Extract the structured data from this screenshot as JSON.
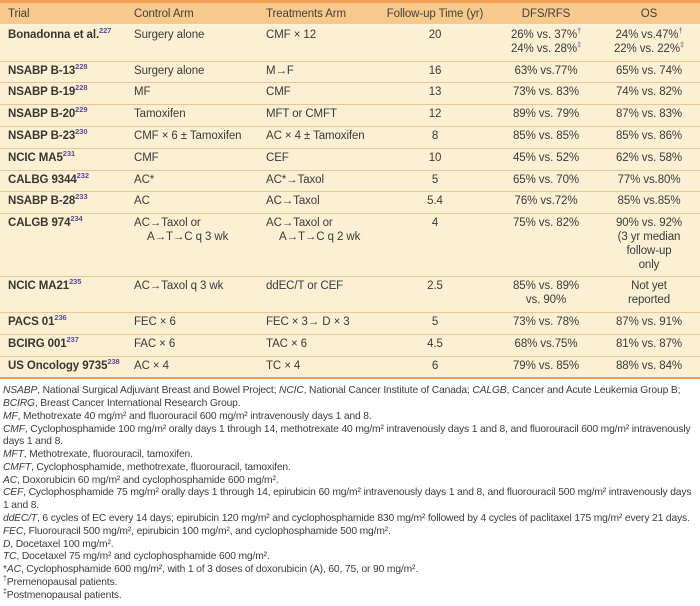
{
  "table": {
    "headers": [
      "Trial",
      "Control Arm",
      "Treatments Arm",
      "Follow-up Time (yr)",
      "DFS/RFS",
      "OS"
    ],
    "rows": [
      {
        "trial": {
          "name": "Bonadonna et al.",
          "ref": "227"
        },
        "control": [
          "Surgery alone"
        ],
        "treatment": [
          "CMF × 12"
        ],
        "followup": "20",
        "dfs": [
          {
            "t": "26% vs. 37%",
            "sup": "†"
          },
          {
            "t": "24% vs. 28%",
            "sup": "‡"
          }
        ],
        "os": [
          {
            "t": "24% vs.47%",
            "sup": "†"
          },
          {
            "t": "22% vs. 22%",
            "sup": "‡"
          }
        ]
      },
      {
        "trial": {
          "name": "NSABP B-13",
          "ref": "228"
        },
        "control": [
          "Surgery alone"
        ],
        "treatment": [
          "M→F"
        ],
        "followup": "16",
        "dfs": [
          {
            "t": "63% vs.77%"
          }
        ],
        "os": [
          {
            "t": "65% vs. 74%"
          }
        ]
      },
      {
        "trial": {
          "name": "NSABP B-19",
          "ref": "228"
        },
        "control": [
          "MF"
        ],
        "treatment": [
          "CMF"
        ],
        "followup": "13",
        "dfs": [
          {
            "t": "73% vs. 83%"
          }
        ],
        "os": [
          {
            "t": "74% vs. 82%"
          }
        ]
      },
      {
        "trial": {
          "name": "NSABP B-20",
          "ref": "229"
        },
        "control": [
          "Tamoxifen"
        ],
        "treatment": [
          "MFT or CMFT"
        ],
        "followup": "12",
        "dfs": [
          {
            "t": "89% vs. 79%"
          }
        ],
        "os": [
          {
            "t": "87% vs. 83%"
          }
        ]
      },
      {
        "trial": {
          "name": "NSABP B-23",
          "ref": "230"
        },
        "control": [
          "CMF × 6 ± Tamoxifen"
        ],
        "treatment": [
          "AC × 4 ± Tamoxifen"
        ],
        "followup": "8",
        "dfs": [
          {
            "t": "85% vs. 85%"
          }
        ],
        "os": [
          {
            "t": "85% vs. 86%"
          }
        ]
      },
      {
        "trial": {
          "name": "NCIC MA5",
          "ref": "231"
        },
        "control": [
          "CMF"
        ],
        "treatment": [
          "CEF"
        ],
        "followup": "10",
        "dfs": [
          {
            "t": "45% vs. 52%"
          }
        ],
        "os": [
          {
            "t": "62% vs. 58%"
          }
        ]
      },
      {
        "trial": {
          "name": "CALBG 9344",
          "ref": "232"
        },
        "control": [
          "AC*"
        ],
        "treatment": [
          "AC*→Taxol"
        ],
        "followup": "5",
        "dfs": [
          {
            "t": "65% vs. 70%"
          }
        ],
        "os": [
          {
            "t": "77% vs.80%"
          }
        ]
      },
      {
        "trial": {
          "name": "NSABP B-28",
          "ref": "233"
        },
        "control": [
          "AC"
        ],
        "treatment": [
          "AC→Taxol"
        ],
        "followup": "5.4",
        "dfs": [
          {
            "t": "76% vs.72%"
          }
        ],
        "os": [
          {
            "t": "85% vs.85%"
          }
        ]
      },
      {
        "trial": {
          "name": "CALGB 974",
          "ref": "234"
        },
        "control": [
          "AC→Taxol or",
          "A→T→C q 3 wk"
        ],
        "treatment": [
          "AC→Taxol or",
          "A→T→C q 2 wk"
        ],
        "followup": "4",
        "dfs": [
          {
            "t": "75% vs. 82%"
          }
        ],
        "os": [
          {
            "t": "90% vs. 92%"
          },
          {
            "t": "(3 yr median"
          },
          {
            "t": "follow-up"
          },
          {
            "t": "only"
          }
        ]
      },
      {
        "trial": {
          "name": "NCIC MA21",
          "ref": "235"
        },
        "control": [
          "AC→Taxol q 3 wk"
        ],
        "treatment": [
          "ddEC/T or CEF"
        ],
        "followup": "2.5",
        "dfs": [
          {
            "t": "85% vs. 89%"
          },
          {
            "t": "vs. 90%"
          }
        ],
        "os": [
          {
            "t": "Not yet"
          },
          {
            "t": "reported"
          }
        ]
      },
      {
        "trial": {
          "name": "PACS 01",
          "ref": "236"
        },
        "control": [
          "FEC × 6"
        ],
        "treatment": [
          "FEC × 3→ D × 3"
        ],
        "followup": "5",
        "dfs": [
          {
            "t": "73% vs. 78%"
          }
        ],
        "os": [
          {
            "t": "87% vs. 91%"
          }
        ]
      },
      {
        "trial": {
          "name": "BCIRG 001",
          "ref": "237"
        },
        "control": [
          "FAC × 6"
        ],
        "treatment": [
          "TAC × 6"
        ],
        "followup": "4.5",
        "dfs": [
          {
            "t": "68% vs.75%"
          }
        ],
        "os": [
          {
            "t": "81% vs. 87%"
          }
        ]
      },
      {
        "trial": {
          "name": "US Oncology 9735",
          "ref": "238"
        },
        "control": [
          "AC × 4"
        ],
        "treatment": [
          "TC × 4"
        ],
        "followup": "6",
        "dfs": [
          {
            "t": "79% vs. 85%"
          }
        ],
        "os": [
          {
            "t": "88% vs. 84%"
          }
        ]
      }
    ]
  },
  "footnotes": [
    [
      {
        "i": 1,
        "t": "NSABP"
      },
      {
        "t": ", National Surgical Adjuvant Breast and Bowel Project; "
      },
      {
        "i": 1,
        "t": "NCIC"
      },
      {
        "t": ", National Cancer Institute of Canada; "
      },
      {
        "i": 1,
        "t": "CALGB"
      },
      {
        "t": ", Cancer and Acute Leukemia Group B; "
      },
      {
        "i": 1,
        "t": "BCIRG"
      },
      {
        "t": ", Breast Cancer International Research Group."
      }
    ],
    [
      {
        "i": 1,
        "t": "MF"
      },
      {
        "t": ", Methotrexate 40 mg/m² and fluorouracil 600 mg/m² intravenously days 1 and 8."
      }
    ],
    [
      {
        "i": 1,
        "t": "CMF"
      },
      {
        "t": ", Cyclophosphamide 100 mg/m² orally days 1 through 14, methotrexate 40 mg/m² intravenously days 1 and 8, and fluorouracil 600 mg/m² intravenously days 1 and 8."
      }
    ],
    [
      {
        "i": 1,
        "t": "MFT"
      },
      {
        "t": ", Methotrexate, fluorouracil, tamoxifen."
      }
    ],
    [
      {
        "i": 1,
        "t": "CMFT"
      },
      {
        "t": ", Cyclophosphamide, methotrexate, fluorouracil, tamoxifen."
      }
    ],
    [
      {
        "i": 1,
        "t": "AC"
      },
      {
        "t": ", Doxorubicin 60 mg/m² and cyclophosphamide 600 mg/m²."
      }
    ],
    [
      {
        "i": 1,
        "t": "CEF"
      },
      {
        "t": ", Cyclophosphamide 75 mg/m² orally days 1 through 14, epirubicin 60 mg/m² intravenously days 1 and 8, and fluorouracil 500 mg/m² intravenously days 1 and 8."
      }
    ],
    [
      {
        "i": 1,
        "t": "ddEC/T"
      },
      {
        "t": ", 6 cycles of EC every 14 days; epirubicin 120 mg/m² and cyclophosphamide 830 mg/m² followed by 4 cycles of paclitaxel 175 mg/m² every 21 days."
      }
    ],
    [
      {
        "i": 1,
        "t": "FEC"
      },
      {
        "t": ", Fluorouracil 500 mg/m², epirubicin 100 mg/m², and cyclophosphamide 500 mg/m²."
      }
    ],
    [
      {
        "i": 1,
        "t": "D"
      },
      {
        "t": ", Docetaxel 100 mg/m²."
      }
    ],
    [
      {
        "i": 1,
        "t": "TC"
      },
      {
        "t": ", Docetaxel 75 mg/m² and cyclophosphamide 600 mg/m²."
      }
    ],
    [
      {
        "t": "*"
      },
      {
        "i": 1,
        "t": "AC"
      },
      {
        "t": ", Cyclophosphamide 600 mg/m², with 1 of 3 doses of doxorubicin (A), 60, 75, or 90 mg/m²."
      }
    ],
    [
      {
        "s": 1,
        "t": "†"
      },
      {
        "t": "Premenopausal patients."
      }
    ],
    [
      {
        "s": 1,
        "t": "‡"
      },
      {
        "t": "Postmenopausal patients."
      }
    ]
  ],
  "colors": {
    "header_bg": "#f8c98c",
    "body_bg": "#fcf0d4",
    "border_orange": "#f0a154",
    "row_divider": "#e9c88f",
    "reference_purple": "#5a4a9a",
    "text": "#3a3a3a"
  }
}
